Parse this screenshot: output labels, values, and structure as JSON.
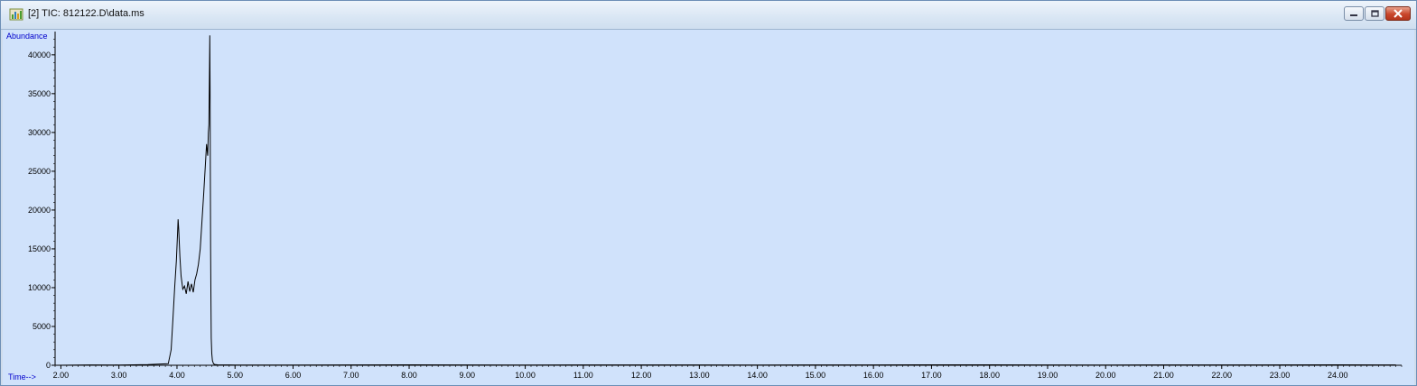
{
  "window": {
    "title": "[2] TIC: 812122.D\\data.ms",
    "icon": "chromatogram-app-icon",
    "buttons": [
      "minimize-icon",
      "restore-icon",
      "close-icon"
    ]
  },
  "colors": {
    "plot_background": "#d0e2fb",
    "trace": "#000000",
    "axis_label": "#0000cc",
    "titlebar": "#dbe7f5"
  },
  "chart_data": {
    "type": "line",
    "ylabel": "Abundance",
    "xlabel": "Time-->",
    "xlim": [
      1.9,
      25.1
    ],
    "ylim": [
      0,
      43000
    ],
    "x_ticks": [
      2,
      3,
      4,
      5,
      6,
      7,
      8,
      9,
      10,
      11,
      12,
      13,
      14,
      15,
      16,
      17,
      18,
      19,
      20,
      21,
      22,
      23,
      24
    ],
    "x_tick_labels": [
      "2.00",
      "3.00",
      "4.00",
      "5.00",
      "6.00",
      "7.00",
      "8.00",
      "9.00",
      "10.00",
      "11.00",
      "12.00",
      "13.00",
      "14.00",
      "15.00",
      "16.00",
      "17.00",
      "18.00",
      "19.00",
      "20.00",
      "21.00",
      "22.00",
      "23.00",
      "24.00"
    ],
    "y_ticks": [
      0,
      5000,
      10000,
      15000,
      20000,
      25000,
      30000,
      35000,
      40000
    ],
    "y_tick_labels": [
      "0",
      "5000",
      "10000",
      "15000",
      "20000",
      "25000",
      "30000",
      "35000",
      "40000"
    ],
    "grid": false,
    "legend": "none",
    "series": [
      {
        "x": [
          1.95,
          2.5,
          3.0,
          3.5,
          3.85,
          3.9,
          3.93,
          3.96,
          3.99,
          4.01,
          4.02,
          4.03,
          4.05,
          4.07,
          4.1,
          4.13,
          4.16,
          4.19,
          4.22,
          4.25,
          4.28,
          4.31,
          4.34,
          4.37,
          4.4,
          4.43,
          4.46,
          4.49,
          4.51,
          4.53,
          4.54,
          4.55,
          4.56,
          4.565,
          4.57,
          4.575,
          4.58,
          4.585,
          4.59,
          4.6,
          4.61,
          4.63,
          4.65,
          4.7,
          5.0,
          6.0,
          8.0,
          10.0,
          12.0,
          14.0,
          16.0,
          18.0,
          20.0,
          22.0,
          24.0,
          25.0
        ],
        "y": [
          0,
          50,
          40,
          80,
          200,
          2000,
          6000,
          10000,
          13500,
          17000,
          18800,
          17500,
          14000,
          11500,
          9800,
          10200,
          9200,
          10800,
          9500,
          10500,
          9400,
          11000,
          11800,
          13000,
          15000,
          18500,
          22000,
          26000,
          28500,
          27000,
          30000,
          31000,
          38500,
          42500,
          36000,
          25000,
          15000,
          8000,
          3500,
          1500,
          600,
          200,
          100,
          60,
          40,
          30,
          60,
          40,
          50,
          40,
          50,
          60,
          40,
          50,
          60,
          50
        ]
      }
    ]
  }
}
